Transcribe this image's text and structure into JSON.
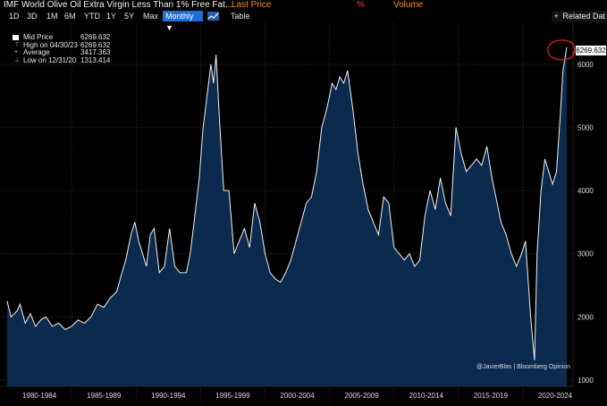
{
  "header": {
    "title": "IMF World Olive Oil Extra Virgin Less Than 1% Free Fat...",
    "last_price_label": "Last Price",
    "pct_symbol": "%",
    "volume_label": "Volume"
  },
  "toolbar": {
    "ranges": [
      "1D",
      "3D",
      "1M",
      "6M",
      "YTD",
      "1Y",
      "5Y",
      "Max"
    ],
    "frequency": "Monthly ▼",
    "table_label": "Table",
    "related_label": "Related Dat",
    "plus": "+"
  },
  "legend": {
    "mid_label": "Mid Price",
    "mid_value": "6269.632",
    "high_label": "High on 04/30/23",
    "high_value": "6269.632",
    "avg_label": "Average",
    "avg_value": "3417.363",
    "low_label": "Low on 12/31/20",
    "low_value": "1313.414"
  },
  "current_value_badge": "6269.632",
  "credit": "@JavierBlas | Bloomberg Opinion",
  "colors": {
    "background": "#000000",
    "area_fill": "#0b2a4e",
    "line": "#f2f2f2",
    "annotation": "#e02020"
  },
  "chart_data": {
    "type": "area",
    "ylim": [
      900,
      6650
    ],
    "y_ticks": [
      1000,
      2000,
      3000,
      4000,
      5000,
      6000
    ],
    "x_range": [
      1980.0,
      2023.4
    ],
    "x_tick_labels": [
      "1980-1984",
      "1985-1989",
      "1990-1994",
      "1995-1999",
      "2000-2004",
      "2005-2009",
      "2010-2014",
      "2015-2019",
      "2020-2024"
    ],
    "series": [
      {
        "values": [
          [
            1980.0,
            2250
          ],
          [
            1980.3,
            2000
          ],
          [
            1980.8,
            2100
          ],
          [
            1981.0,
            2200
          ],
          [
            1981.4,
            1900
          ],
          [
            1981.8,
            2050
          ],
          [
            1982.2,
            1850
          ],
          [
            1982.6,
            1950
          ],
          [
            1983.0,
            2000
          ],
          [
            1983.5,
            1850
          ],
          [
            1984.0,
            1900
          ],
          [
            1984.5,
            1800
          ],
          [
            1985.0,
            1850
          ],
          [
            1985.5,
            1950
          ],
          [
            1986.0,
            1900
          ],
          [
            1986.5,
            2000
          ],
          [
            1987.0,
            2200
          ],
          [
            1987.5,
            2150
          ],
          [
            1988.0,
            2300
          ],
          [
            1988.5,
            2400
          ],
          [
            1988.9,
            2700
          ],
          [
            1989.2,
            2900
          ],
          [
            1989.6,
            3300
          ],
          [
            1989.9,
            3500
          ],
          [
            1990.2,
            3200
          ],
          [
            1990.5,
            3000
          ],
          [
            1990.8,
            2800
          ],
          [
            1991.1,
            3300
          ],
          [
            1991.4,
            3400
          ],
          [
            1991.8,
            2700
          ],
          [
            1992.2,
            2800
          ],
          [
            1992.6,
            3400
          ],
          [
            1993.0,
            2800
          ],
          [
            1993.4,
            2700
          ],
          [
            1993.9,
            2700
          ],
          [
            1994.2,
            3000
          ],
          [
            1994.5,
            3500
          ],
          [
            1994.9,
            4200
          ],
          [
            1995.2,
            5000
          ],
          [
            1995.5,
            5500
          ],
          [
            1995.8,
            6000
          ],
          [
            1996.0,
            5700
          ],
          [
            1996.2,
            6150
          ],
          [
            1996.5,
            5000
          ],
          [
            1996.8,
            4000
          ],
          [
            1997.2,
            4000
          ],
          [
            1997.6,
            3000
          ],
          [
            1998.0,
            3200
          ],
          [
            1998.4,
            3400
          ],
          [
            1998.8,
            3100
          ],
          [
            1999.2,
            3800
          ],
          [
            1999.6,
            3500
          ],
          [
            2000.0,
            3000
          ],
          [
            2000.4,
            2700
          ],
          [
            2000.8,
            2600
          ],
          [
            2001.2,
            2550
          ],
          [
            2001.6,
            2700
          ],
          [
            2002.0,
            2900
          ],
          [
            2002.4,
            3200
          ],
          [
            2002.8,
            3500
          ],
          [
            2003.2,
            3800
          ],
          [
            2003.6,
            3900
          ],
          [
            2004.0,
            4300
          ],
          [
            2004.4,
            5000
          ],
          [
            2004.8,
            5300
          ],
          [
            2005.2,
            5700
          ],
          [
            2005.5,
            5600
          ],
          [
            2005.8,
            5800
          ],
          [
            2006.1,
            5700
          ],
          [
            2006.4,
            5900
          ],
          [
            2006.8,
            5300
          ],
          [
            2007.2,
            4600
          ],
          [
            2007.6,
            4100
          ],
          [
            2008.0,
            3700
          ],
          [
            2008.4,
            3500
          ],
          [
            2008.8,
            3300
          ],
          [
            2009.2,
            3900
          ],
          [
            2009.6,
            3800
          ],
          [
            2010.0,
            3100
          ],
          [
            2010.4,
            3000
          ],
          [
            2010.8,
            2900
          ],
          [
            2011.2,
            3000
          ],
          [
            2011.6,
            2800
          ],
          [
            2012.0,
            2900
          ],
          [
            2012.4,
            3600
          ],
          [
            2012.8,
            4000
          ],
          [
            2013.2,
            3700
          ],
          [
            2013.6,
            4200
          ],
          [
            2014.0,
            3800
          ],
          [
            2014.4,
            3600
          ],
          [
            2014.8,
            5000
          ],
          [
            2015.2,
            4600
          ],
          [
            2015.6,
            4300
          ],
          [
            2016.0,
            4400
          ],
          [
            2016.4,
            4500
          ],
          [
            2016.8,
            4400
          ],
          [
            2017.2,
            4700
          ],
          [
            2017.6,
            4200
          ],
          [
            2017.9,
            3900
          ],
          [
            2018.3,
            3500
          ],
          [
            2018.7,
            3300
          ],
          [
            2019.1,
            3000
          ],
          [
            2019.5,
            2800
          ],
          [
            2019.9,
            3000
          ],
          [
            2020.2,
            3200
          ],
          [
            2020.6,
            2000
          ],
          [
            2020.9,
            1313
          ],
          [
            2021.1,
            3000
          ],
          [
            2021.4,
            4000
          ],
          [
            2021.7,
            4500
          ],
          [
            2022.0,
            4300
          ],
          [
            2022.3,
            4100
          ],
          [
            2022.6,
            4300
          ],
          [
            2022.9,
            5200
          ],
          [
            2023.1,
            5900
          ],
          [
            2023.4,
            6270
          ]
        ]
      }
    ]
  }
}
